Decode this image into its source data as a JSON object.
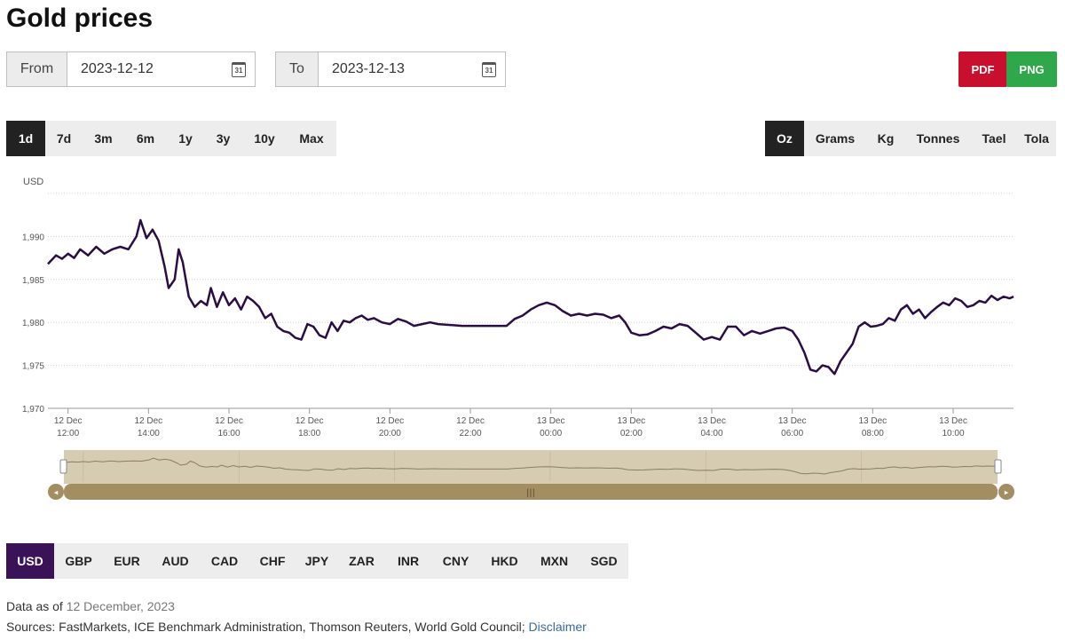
{
  "page": {
    "title": "Gold prices"
  },
  "date_range": {
    "from_label": "From",
    "from_value": "2023-12-12",
    "to_label": "To",
    "to_value": "2023-12-13",
    "calendar_day": "31"
  },
  "export": {
    "pdf": "PDF",
    "png": "PNG",
    "pdf_color": "#c8102e",
    "png_color": "#2ea84a"
  },
  "ranges": [
    "1d",
    "7d",
    "3m",
    "6m",
    "1y",
    "3y",
    "10y",
    "Max"
  ],
  "active_range": "1d",
  "units": [
    "Oz",
    "Grams",
    "Kg",
    "Tonnes",
    "Tael",
    "Tola"
  ],
  "active_unit": "Oz",
  "currencies": [
    "USD",
    "GBP",
    "EUR",
    "AUD",
    "CAD",
    "CHF",
    "JPY",
    "ZAR",
    "INR",
    "CNY",
    "HKD",
    "MXN",
    "SGD"
  ],
  "active_currency": "USD",
  "colors": {
    "line": "#2a0d45",
    "navigator_fill": "#d6ccb2",
    "navigator_bar": "#a38e62",
    "accent": "#3a1257"
  },
  "chart_data": {
    "type": "line",
    "ylabel": "USD",
    "ylim": [
      1970,
      1995
    ],
    "yticks": [
      1970,
      1975,
      1980,
      1985,
      1990
    ],
    "ytick_labels": [
      "1,970",
      "1,975",
      "1,980",
      "1,985",
      "1,990"
    ],
    "x_unit": "hours since 12 Dec 12:00 (chart is read in clock time)",
    "xlim": [
      -0.5,
      23.5
    ],
    "xticks": [
      {
        "hour": 0,
        "day": "12 Dec",
        "time": "12:00"
      },
      {
        "hour": 2,
        "day": "12 Dec",
        "time": "14:00"
      },
      {
        "hour": 4,
        "day": "12 Dec",
        "time": "16:00"
      },
      {
        "hour": 6,
        "day": "12 Dec",
        "time": "18:00"
      },
      {
        "hour": 8,
        "day": "12 Dec",
        "time": "20:00"
      },
      {
        "hour": 10,
        "day": "12 Dec",
        "time": "22:00"
      },
      {
        "hour": 12,
        "day": "13 Dec",
        "time": "00:00"
      },
      {
        "hour": 14,
        "day": "13 Dec",
        "time": "02:00"
      },
      {
        "hour": 16,
        "day": "13 Dec",
        "time": "04:00"
      },
      {
        "hour": 18,
        "day": "13 Dec",
        "time": "06:00"
      },
      {
        "hour": 20,
        "day": "13 Dec",
        "time": "08:00"
      },
      {
        "hour": 22,
        "day": "13 Dec",
        "time": "10:00"
      }
    ],
    "series": [
      {
        "values": [
          [
            -0.5,
            1986.8
          ],
          [
            -0.3,
            1987.8
          ],
          [
            -0.15,
            1987.4
          ],
          [
            0,
            1988.0
          ],
          [
            0.15,
            1987.5
          ],
          [
            0.3,
            1988.5
          ],
          [
            0.5,
            1987.8
          ],
          [
            0.7,
            1988.8
          ],
          [
            0.9,
            1988.0
          ],
          [
            1.1,
            1988.5
          ],
          [
            1.3,
            1988.8
          ],
          [
            1.5,
            1988.5
          ],
          [
            1.7,
            1990.0
          ],
          [
            1.8,
            1991.9
          ],
          [
            1.95,
            1989.8
          ],
          [
            2.1,
            1990.8
          ],
          [
            2.25,
            1989.5
          ],
          [
            2.4,
            1986.5
          ],
          [
            2.5,
            1984.0
          ],
          [
            2.65,
            1985.0
          ],
          [
            2.75,
            1988.5
          ],
          [
            2.85,
            1987.0
          ],
          [
            3.0,
            1983.0
          ],
          [
            3.15,
            1981.8
          ],
          [
            3.3,
            1982.5
          ],
          [
            3.45,
            1982.0
          ],
          [
            3.55,
            1984.0
          ],
          [
            3.7,
            1981.8
          ],
          [
            3.85,
            1983.5
          ],
          [
            4.0,
            1982.0
          ],
          [
            4.15,
            1982.8
          ],
          [
            4.3,
            1981.5
          ],
          [
            4.45,
            1983.0
          ],
          [
            4.6,
            1982.5
          ],
          [
            4.75,
            1981.8
          ],
          [
            4.9,
            1980.5
          ],
          [
            5.05,
            1981.0
          ],
          [
            5.2,
            1979.5
          ],
          [
            5.35,
            1979.0
          ],
          [
            5.5,
            1978.8
          ],
          [
            5.65,
            1978.2
          ],
          [
            5.8,
            1978.0
          ],
          [
            5.95,
            1979.8
          ],
          [
            6.1,
            1979.5
          ],
          [
            6.25,
            1978.5
          ],
          [
            6.4,
            1978.2
          ],
          [
            6.55,
            1980.0
          ],
          [
            6.7,
            1979.0
          ],
          [
            6.85,
            1980.2
          ],
          [
            7.0,
            1980.0
          ],
          [
            7.15,
            1980.5
          ],
          [
            7.3,
            1980.8
          ],
          [
            7.45,
            1980.3
          ],
          [
            7.6,
            1980.5
          ],
          [
            7.8,
            1980.0
          ],
          [
            8.0,
            1979.8
          ],
          [
            8.2,
            1980.4
          ],
          [
            8.4,
            1980.1
          ],
          [
            8.6,
            1979.6
          ],
          [
            8.8,
            1979.8
          ],
          [
            9.0,
            1980.0
          ],
          [
            9.2,
            1979.8
          ],
          [
            9.5,
            1979.7
          ],
          [
            9.8,
            1979.6
          ],
          [
            10.1,
            1979.6
          ],
          [
            10.4,
            1979.6
          ],
          [
            10.7,
            1979.6
          ],
          [
            10.9,
            1979.6
          ],
          [
            11.1,
            1980.4
          ],
          [
            11.3,
            1980.8
          ],
          [
            11.5,
            1981.5
          ],
          [
            11.7,
            1982.0
          ],
          [
            11.9,
            1982.3
          ],
          [
            12.1,
            1982.0
          ],
          [
            12.3,
            1981.3
          ],
          [
            12.5,
            1980.8
          ],
          [
            12.7,
            1981.0
          ],
          [
            12.9,
            1980.8
          ],
          [
            13.1,
            1981.0
          ],
          [
            13.3,
            1980.9
          ],
          [
            13.5,
            1980.5
          ],
          [
            13.7,
            1980.8
          ],
          [
            13.85,
            1980.0
          ],
          [
            14.0,
            1978.8
          ],
          [
            14.2,
            1978.5
          ],
          [
            14.4,
            1978.6
          ],
          [
            14.6,
            1979.0
          ],
          [
            14.8,
            1979.5
          ],
          [
            15.0,
            1979.3
          ],
          [
            15.2,
            1979.8
          ],
          [
            15.4,
            1979.6
          ],
          [
            15.6,
            1978.8
          ],
          [
            15.8,
            1978.0
          ],
          [
            16.0,
            1978.3
          ],
          [
            16.2,
            1978.0
          ],
          [
            16.4,
            1979.5
          ],
          [
            16.6,
            1979.5
          ],
          [
            16.8,
            1978.5
          ],
          [
            17.0,
            1979.0
          ],
          [
            17.2,
            1978.7
          ],
          [
            17.4,
            1979.0
          ],
          [
            17.6,
            1979.3
          ],
          [
            17.8,
            1979.4
          ],
          [
            18.0,
            1979.0
          ],
          [
            18.15,
            1978.0
          ],
          [
            18.3,
            1976.5
          ],
          [
            18.45,
            1974.5
          ],
          [
            18.6,
            1974.3
          ],
          [
            18.75,
            1975.0
          ],
          [
            18.9,
            1974.8
          ],
          [
            19.05,
            1974.0
          ],
          [
            19.2,
            1975.5
          ],
          [
            19.35,
            1976.5
          ],
          [
            19.5,
            1977.5
          ],
          [
            19.65,
            1979.5
          ],
          [
            19.8,
            1980.0
          ],
          [
            19.95,
            1979.5
          ],
          [
            20.1,
            1979.6
          ],
          [
            20.25,
            1979.8
          ],
          [
            20.4,
            1980.5
          ],
          [
            20.55,
            1980.2
          ],
          [
            20.7,
            1981.5
          ],
          [
            20.85,
            1982.0
          ],
          [
            21.0,
            1981.0
          ],
          [
            21.15,
            1981.5
          ],
          [
            21.3,
            1980.5
          ],
          [
            21.45,
            1981.2
          ],
          [
            21.6,
            1981.8
          ],
          [
            21.75,
            1982.3
          ],
          [
            21.9,
            1982.0
          ],
          [
            22.05,
            1982.8
          ],
          [
            22.2,
            1982.5
          ],
          [
            22.35,
            1981.8
          ],
          [
            22.5,
            1982.0
          ],
          [
            22.65,
            1982.5
          ],
          [
            22.8,
            1982.3
          ],
          [
            22.95,
            1983.1
          ],
          [
            23.1,
            1982.6
          ],
          [
            23.25,
            1983.0
          ],
          [
            23.4,
            1982.8
          ],
          [
            23.5,
            1983.0
          ]
        ]
      }
    ]
  },
  "footer": {
    "data_as_of_label": "Data as of",
    "data_as_of_value": "12 December, 2023",
    "sources_text": "Sources: FastMarkets, ICE Benchmark Administration, Thomson Reuters, World Gold Council;",
    "disclaimer": "Disclaimer"
  }
}
